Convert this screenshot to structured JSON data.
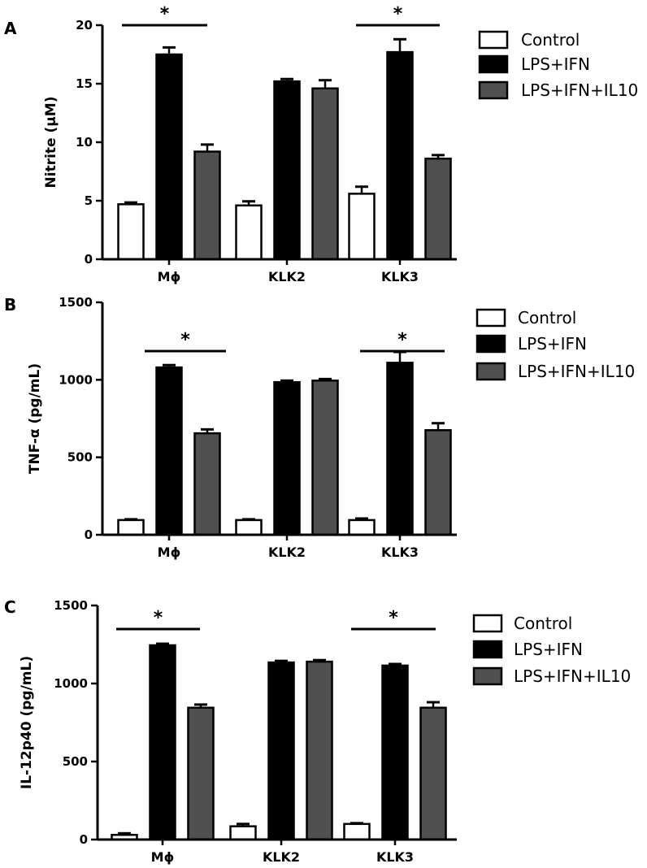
{
  "colors": {
    "control": "#ffffff",
    "lps_ifn": "#000000",
    "lps_ifn_il10": "#505050",
    "axis": "#000000"
  },
  "chart_data": [
    {
      "type": "bar",
      "panel": "A",
      "ylabel": "Nitrite (μM)",
      "categories": [
        "Mϕ",
        "KLK2",
        "KLK3"
      ],
      "ylim": [
        0,
        20
      ],
      "yticks": [
        0,
        5,
        10,
        15,
        20
      ],
      "series": [
        {
          "name": "Control",
          "values": [
            4.7,
            4.6,
            5.6
          ],
          "errors": [
            0.15,
            0.35,
            0.6
          ]
        },
        {
          "name": "LPS+IFN",
          "values": [
            17.5,
            15.2,
            17.7
          ],
          "errors": [
            0.6,
            0.2,
            1.1
          ]
        },
        {
          "name": "LPS+IFN+IL10",
          "values": [
            9.2,
            14.6,
            8.6
          ],
          "errors": [
            0.6,
            0.7,
            0.3
          ]
        }
      ],
      "significance": [
        {
          "category": "Mϕ",
          "label": "*"
        },
        {
          "category": "KLK3",
          "label": "*"
        }
      ],
      "legend": [
        "Control",
        "LPS+IFN",
        "LPS+IFN+IL10"
      ],
      "legend_position": "top-right"
    },
    {
      "type": "bar",
      "panel": "B",
      "ylabel": "TNF-α (pg/mL)",
      "categories": [
        "Mϕ",
        "KLK2",
        "KLK3"
      ],
      "ylim": [
        0,
        1500
      ],
      "yticks": [
        0,
        500,
        1000,
        1500
      ],
      "series": [
        {
          "name": "Control",
          "values": [
            95,
            95,
            95
          ],
          "errors": [
            5,
            5,
            10
          ]
        },
        {
          "name": "LPS+IFN",
          "values": [
            1080,
            985,
            1110
          ],
          "errors": [
            15,
            10,
            70
          ]
        },
        {
          "name": "LPS+IFN+IL10",
          "values": [
            655,
            995,
            675
          ],
          "errors": [
            25,
            10,
            45
          ]
        }
      ],
      "significance": [
        {
          "category": "Mϕ",
          "label": "*"
        },
        {
          "category": "KLK3",
          "label": "*"
        }
      ],
      "legend": [
        "Control",
        "LPS+IFN",
        "LPS+IFN+IL10"
      ],
      "legend_position": "top-right"
    },
    {
      "type": "bar",
      "panel": "C",
      "ylabel": "IL-12p40 (pg/mL)",
      "categories": [
        "Mϕ",
        "KLK2",
        "KLK3"
      ],
      "ylim": [
        0,
        1500
      ],
      "yticks": [
        0,
        500,
        1000,
        1500
      ],
      "series": [
        {
          "name": "Control",
          "values": [
            30,
            85,
            100
          ],
          "errors": [
            10,
            15,
            5
          ]
        },
        {
          "name": "LPS+IFN",
          "values": [
            1245,
            1135,
            1115
          ],
          "errors": [
            10,
            10,
            10
          ]
        },
        {
          "name": "LPS+IFN+IL10",
          "values": [
            845,
            1140,
            845
          ],
          "errors": [
            20,
            10,
            35
          ]
        }
      ],
      "significance": [
        {
          "category": "Mϕ",
          "label": "*"
        },
        {
          "category": "KLK3",
          "label": "*"
        }
      ],
      "legend": [
        "Control",
        "LPS+IFN",
        "LPS+IFN+IL10"
      ],
      "legend_position": "top-right"
    }
  ]
}
